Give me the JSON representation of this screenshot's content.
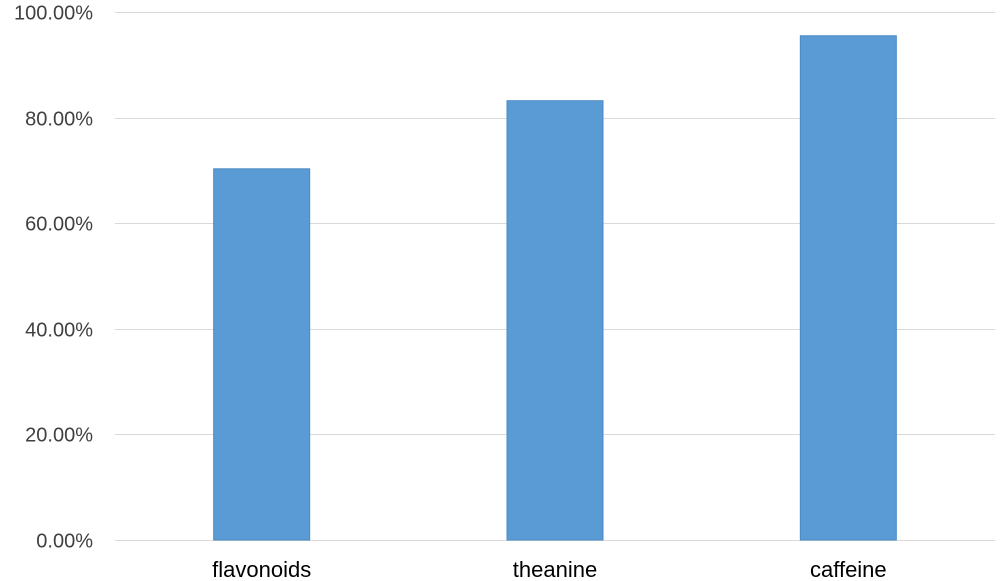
{
  "chart_data": {
    "type": "bar",
    "title": "",
    "xlabel": "",
    "ylabel": "",
    "categories": [
      "flavonoids",
      "theanine",
      "caffeine"
    ],
    "values": [
      0.703,
      0.832,
      0.955
    ],
    "ylim": [
      0,
      1
    ],
    "yticks": [
      0,
      0.2,
      0.4,
      0.6,
      0.8,
      1.0
    ],
    "ytick_labels": [
      "0.00%",
      "20.00%",
      "40.00%",
      "60.00%",
      "80.00%",
      "100.00%"
    ],
    "grid": true,
    "legend": "none",
    "bar_color": "#5b9bd5",
    "bar_edge_color": "#4a8ac4",
    "grid_color": "#d9d9d9"
  }
}
